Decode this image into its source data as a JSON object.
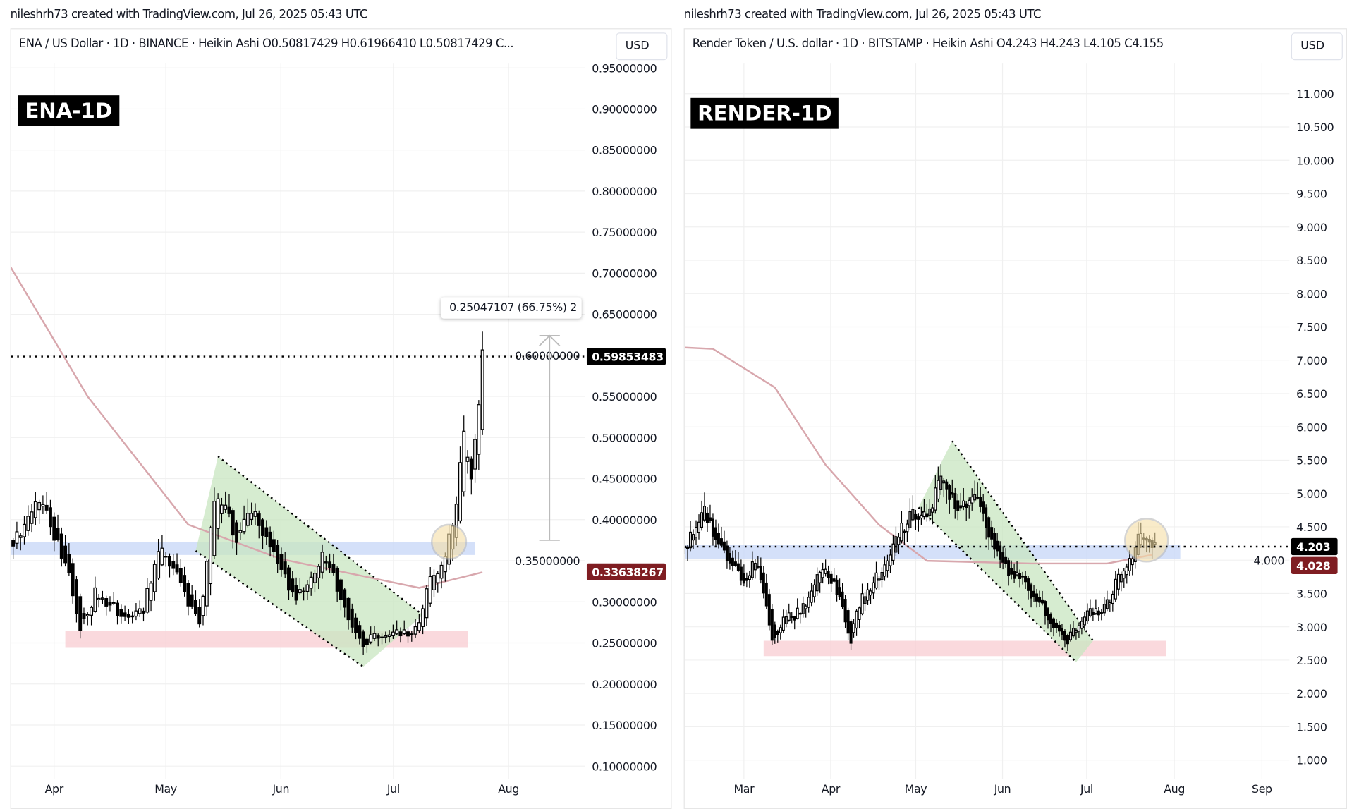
{
  "credit_left": "nileshrh73 created with TradingView.com, Jul 26, 2025 05:43 UTC",
  "credit_right": "nileshrh73 created with TradingView.com, Jul 26, 2025 05:43 UTC",
  "colors": {
    "candle": "#000000",
    "ma": "#d8a7ad",
    "blue_zone": "#c9d8f7",
    "red_zone": "#f9cfd4",
    "channel": "#c8e6c0",
    "circle": "#f6dfa6",
    "last_price_bg": "#000000",
    "ma_price_bg": "#7f1d22"
  },
  "chart_data": [
    {
      "type": "candlestick",
      "style": "Heikin Ashi",
      "legend": "ENA / US Dollar · 1D · BINANCE · Heikin Ashi  O0.50817429  H0.61966410  L0.50817429  C...",
      "currency_button": "USD",
      "badge": "ENA-1D",
      "y_ticks": [
        "0.95000000",
        "0.90000000",
        "0.85000000",
        "0.80000000",
        "0.75000000",
        "0.70000000",
        "0.65000000",
        "0.60000000",
        "0.55000000",
        "0.50000000",
        "0.45000000",
        "0.40000000",
        "0.35000000",
        "0.30000000",
        "0.25000000",
        "0.20000000",
        "0.15000000",
        "0.10000000"
      ],
      "x_ticks": [
        "Apr",
        "May",
        "Jun",
        "Jul",
        "Aug"
      ],
      "x_range": [
        "2025-03-20",
        "2025-08-20"
      ],
      "ylim": [
        0.0633,
        1.0
      ],
      "grid": true,
      "last_price": "0.59853483",
      "ma_price": "0.33638267",
      "measure_label": "0.25047107 (66.75%) 2",
      "measure": {
        "date": "2025-08-12",
        "from": 0.375,
        "to": 0.624
      },
      "price_path": [
        [
          "2025-03-20",
          0.37
        ],
        [
          "2025-03-25",
          0.4
        ],
        [
          "2025-03-28",
          0.43
        ],
        [
          "2025-04-01",
          0.38
        ],
        [
          "2025-04-05",
          0.33
        ],
        [
          "2025-04-08",
          0.27
        ],
        [
          "2025-04-12",
          0.31
        ],
        [
          "2025-04-15",
          0.3
        ],
        [
          "2025-04-20",
          0.28
        ],
        [
          "2025-04-25",
          0.29
        ],
        [
          "2025-04-28",
          0.35
        ],
        [
          "2025-05-01",
          0.36
        ],
        [
          "2025-05-05",
          0.32
        ],
        [
          "2025-05-08",
          0.29
        ],
        [
          "2025-05-10",
          0.27
        ],
        [
          "2025-05-13",
          0.4
        ],
        [
          "2025-05-15",
          0.43
        ],
        [
          "2025-05-20",
          0.38
        ],
        [
          "2025-05-25",
          0.41
        ],
        [
          "2025-05-30",
          0.36
        ],
        [
          "2025-06-02",
          0.33
        ],
        [
          "2025-06-05",
          0.3
        ],
        [
          "2025-06-10",
          0.34
        ],
        [
          "2025-06-12",
          0.36
        ],
        [
          "2025-06-15",
          0.33
        ],
        [
          "2025-06-18",
          0.3
        ],
        [
          "2025-06-20",
          0.27
        ],
        [
          "2025-06-23",
          0.25
        ],
        [
          "2025-06-27",
          0.26
        ],
        [
          "2025-07-01",
          0.26
        ],
        [
          "2025-07-05",
          0.26
        ],
        [
          "2025-07-08",
          0.27
        ],
        [
          "2025-07-10",
          0.32
        ],
        [
          "2025-07-13",
          0.34
        ],
        [
          "2025-07-15",
          0.36
        ],
        [
          "2025-07-18",
          0.42
        ],
        [
          "2025-07-20",
          0.5
        ],
        [
          "2025-07-22",
          0.46
        ],
        [
          "2025-07-24",
          0.55
        ],
        [
          "2025-07-25",
          0.598
        ]
      ],
      "moving_average": [
        [
          "2025-03-20",
          0.71
        ],
        [
          "2025-04-10",
          0.55
        ],
        [
          "2025-05-07",
          0.394
        ],
        [
          "2025-06-01",
          0.352
        ],
        [
          "2025-07-08",
          0.317
        ],
        [
          "2025-07-25",
          0.336
        ]
      ],
      "blue_zone": {
        "from": "2025-03-20",
        "to": "2025-07-23",
        "low": 0.357,
        "high": 0.373
      },
      "red_zone": {
        "from": "2025-04-04",
        "to": "2025-07-21",
        "low": 0.244,
        "high": 0.265
      },
      "channel": {
        "upper": [
          [
            "2025-05-15",
            0.477
          ],
          [
            "2025-07-09",
            0.284
          ]
        ],
        "lower": [
          [
            "2025-05-09",
            0.362
          ],
          [
            "2025-06-23",
            0.221
          ]
        ]
      },
      "circle": {
        "date": "2025-07-16",
        "price": 0.373
      }
    },
    {
      "type": "candlestick",
      "style": "Heikin Ashi",
      "legend": "Render Token / U.S. dollar · 1D · BITSTAMP · Heikin Ashi  O4.243  H4.243  L4.105  C4.155",
      "currency_button": "USD",
      "badge": "RENDER-1D",
      "y_ticks": [
        "11.000",
        "10.500",
        "10.000",
        "9.500",
        "9.000",
        "8.500",
        "8.000",
        "7.500",
        "7.000",
        "6.500",
        "6.000",
        "5.500",
        "5.000",
        "4.500",
        "4.000",
        "3.500",
        "3.000",
        "2.500",
        "2.000",
        "1.500",
        "1.000"
      ],
      "x_ticks": [
        "Mar",
        "Apr",
        "May",
        "Jun",
        "Jul",
        "Aug",
        "Sep"
      ],
      "x_range": [
        "2025-02-08",
        "2025-09-15"
      ],
      "ylim": [
        0.4,
        11.9
      ],
      "grid": true,
      "last_price": "4.203",
      "ma_price": "4.028",
      "price_path": [
        [
          "2025-02-08",
          4.2
        ],
        [
          "2025-02-12",
          4.5
        ],
        [
          "2025-02-15",
          4.7
        ],
        [
          "2025-02-20",
          4.2
        ],
        [
          "2025-02-25",
          3.9
        ],
        [
          "2025-03-01",
          3.6
        ],
        [
          "2025-03-05",
          4.0
        ],
        [
          "2025-03-08",
          3.5
        ],
        [
          "2025-03-11",
          2.8
        ],
        [
          "2025-03-15",
          3.1
        ],
        [
          "2025-03-20",
          3.2
        ],
        [
          "2025-03-25",
          3.5
        ],
        [
          "2025-03-28",
          3.9
        ],
        [
          "2025-04-01",
          3.7
        ],
        [
          "2025-04-04",
          3.4
        ],
        [
          "2025-04-08",
          2.8
        ],
        [
          "2025-04-10",
          3.3
        ],
        [
          "2025-04-15",
          3.6
        ],
        [
          "2025-04-20",
          3.9
        ],
        [
          "2025-04-25",
          4.4
        ],
        [
          "2025-04-28",
          4.6
        ],
        [
          "2025-05-02",
          4.7
        ],
        [
          "2025-05-05",
          4.6
        ],
        [
          "2025-05-08",
          5.0
        ],
        [
          "2025-05-11",
          5.3
        ],
        [
          "2025-05-14",
          4.9
        ],
        [
          "2025-05-17",
          4.7
        ],
        [
          "2025-05-20",
          5.0
        ],
        [
          "2025-05-25",
          4.7
        ],
        [
          "2025-05-29",
          4.2
        ],
        [
          "2025-06-02",
          3.9
        ],
        [
          "2025-06-05",
          3.7
        ],
        [
          "2025-06-08",
          3.8
        ],
        [
          "2025-06-11",
          3.5
        ],
        [
          "2025-06-15",
          3.3
        ],
        [
          "2025-06-20",
          3.0
        ],
        [
          "2025-06-24",
          2.8
        ],
        [
          "2025-06-27",
          3.0
        ],
        [
          "2025-07-01",
          3.2
        ],
        [
          "2025-07-05",
          3.2
        ],
        [
          "2025-07-09",
          3.4
        ],
        [
          "2025-07-12",
          3.8
        ],
        [
          "2025-07-16",
          4.0
        ],
        [
          "2025-07-19",
          4.3
        ],
        [
          "2025-07-22",
          4.4
        ],
        [
          "2025-07-25",
          4.2
        ]
      ],
      "moving_average": [
        [
          "2025-02-08",
          7.19
        ],
        [
          "2025-02-18",
          7.17
        ],
        [
          "2025-03-12",
          6.59
        ],
        [
          "2025-03-30",
          5.43
        ],
        [
          "2025-04-18",
          4.53
        ],
        [
          "2025-05-05",
          3.99
        ],
        [
          "2025-06-11",
          3.95
        ],
        [
          "2025-07-08",
          3.95
        ],
        [
          "2025-07-24",
          4.08
        ]
      ],
      "blue_zone": {
        "from": "2025-02-08",
        "to": "2025-08-03",
        "low": 4.02,
        "high": 4.23
      },
      "red_zone": {
        "from": "2025-03-08",
        "to": "2025-07-29",
        "low": 2.56,
        "high": 2.79
      },
      "channel": {
        "upper": [
          [
            "2025-05-14",
            5.79
          ],
          [
            "2025-07-03",
            2.79
          ]
        ],
        "lower": [
          [
            "2025-05-02",
            4.79
          ],
          [
            "2025-06-27",
            2.47
          ]
        ]
      },
      "circle": {
        "date": "2025-07-22",
        "price": 4.3
      }
    }
  ]
}
